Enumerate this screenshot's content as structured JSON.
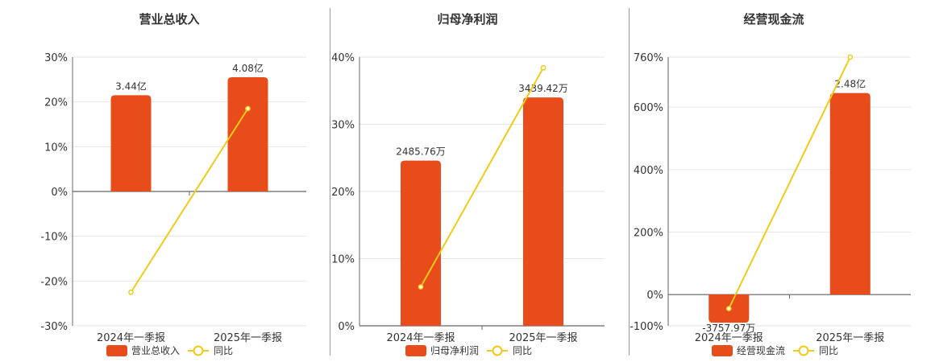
{
  "chart_data": [
    {
      "type": "bar",
      "title": "营业总收入",
      "categories": [
        "2024年一季报",
        "2025年一季报"
      ],
      "bar_labels": [
        "3.44亿",
        "4.08亿"
      ],
      "bar_heights_on_left_axis": [
        21.5,
        25.5
      ],
      "yoy_values": [
        -22.5,
        18.5
      ],
      "yticks": [
        "30%",
        "20%",
        "10%",
        "0%",
        "-10%",
        "-20%",
        "-30%"
      ],
      "ylim": [
        -30,
        30
      ],
      "series": [
        {
          "name": "营业总收入",
          "kind": "bar",
          "color": "#e84c1b"
        },
        {
          "name": "同比",
          "kind": "line",
          "color": "#f0cb17"
        }
      ]
    },
    {
      "type": "bar",
      "title": "归母净利润",
      "categories": [
        "2024年一季报",
        "2025年一季报"
      ],
      "bar_labels": [
        "2485.76万",
        "3439.42万"
      ],
      "bar_heights_on_left_axis": [
        24.6,
        34
      ],
      "yoy_values": [
        5.8,
        38.4
      ],
      "yticks": [
        "40%",
        "30%",
        "20%",
        "10%",
        "0%"
      ],
      "ylim": [
        0,
        40
      ],
      "series": [
        {
          "name": "归母净利润",
          "kind": "bar",
          "color": "#e84c1b"
        },
        {
          "name": "同比",
          "kind": "line",
          "color": "#f0cb17"
        }
      ]
    },
    {
      "type": "bar",
      "title": "经营现金流",
      "categories": [
        "2024年一季报",
        "2025年一季报"
      ],
      "bar_labels": [
        "-3757.97万",
        "2.48亿"
      ],
      "bar_heights_on_left_axis": [
        -90,
        645
      ],
      "yoy_values": [
        -45,
        760
      ],
      "yticks": [
        "760%",
        "600%",
        "400%",
        "200%",
        "0%",
        "-100%"
      ],
      "ylim": [
        -100,
        760
      ],
      "series": [
        {
          "name": "经营现金流",
          "kind": "bar",
          "color": "#e84c1b"
        },
        {
          "name": "同比",
          "kind": "line",
          "color": "#f0cb17"
        }
      ]
    }
  ]
}
